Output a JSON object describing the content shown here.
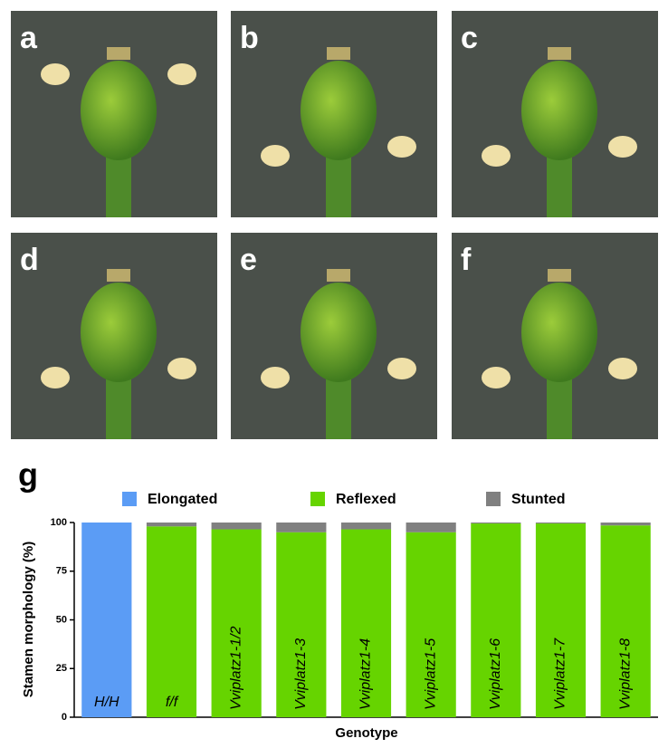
{
  "panels": [
    "a",
    "b",
    "c",
    "d",
    "e",
    "f"
  ],
  "chart_label": "g",
  "chart_data": {
    "type": "stacked-bar",
    "ylabel": "Stamen morphology (%)",
    "xlabel": "Genotype",
    "categories": [
      "H/H",
      "f/f",
      "Vviplatz1-1/2",
      "Vviplatz1-3",
      "Vviplatz1-4",
      "Vviplatz1-5",
      "Vviplatz1-6",
      "Vviplatz1-7",
      "Vviplatz1-8"
    ],
    "series": [
      {
        "name": "Elongated",
        "color": "#5b9cf5",
        "values": [
          100,
          0,
          0,
          0,
          0,
          0,
          0,
          0,
          0
        ]
      },
      {
        "name": "Reflexed",
        "color": "#66d400",
        "values": [
          0,
          98,
          96.5,
          95,
          96.5,
          95,
          99.5,
          99.5,
          98.5
        ]
      },
      {
        "name": "Stunted",
        "color": "#808080",
        "values": [
          0,
          2,
          3.5,
          5,
          3.5,
          5,
          0.5,
          0.5,
          1.5
        ]
      }
    ],
    "ylim": [
      0,
      100
    ],
    "yticks": [
      0,
      25,
      50,
      75,
      100
    ],
    "legend": "top"
  }
}
